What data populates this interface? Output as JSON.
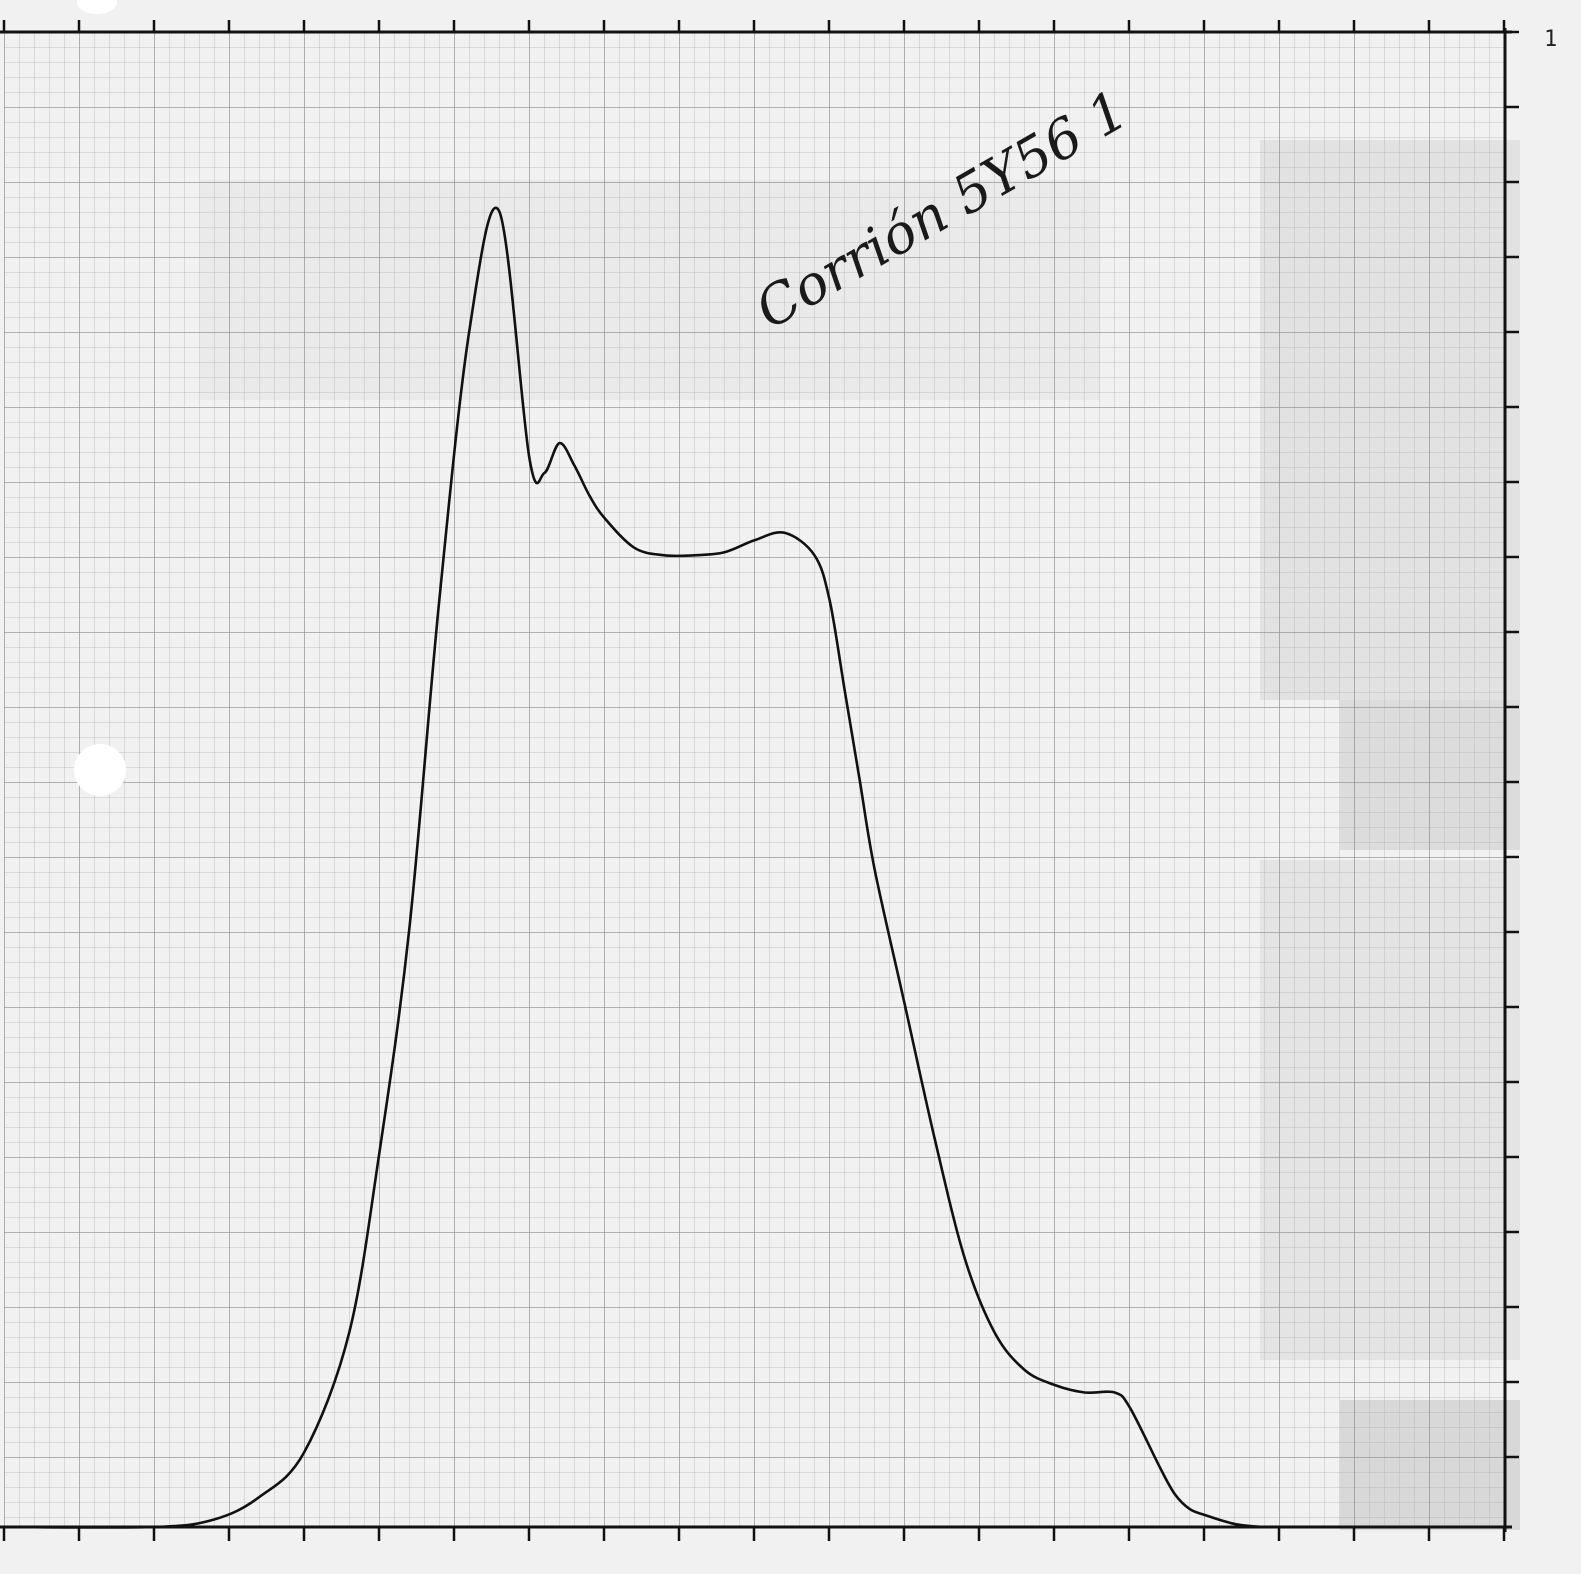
{
  "chart_data": {
    "type": "line",
    "title": "",
    "xlabel": "",
    "ylabel": "",
    "handwritten_note": "Corrión 5Y56 1",
    "right_edge_label": "1",
    "xlim": [
      0,
      100
    ],
    "ylim": [
      0,
      100
    ],
    "grid": true,
    "series": [
      {
        "x": [
          0,
          10,
          14,
          17,
          20,
          23,
          25,
          27,
          29,
          31,
          33,
          35,
          36,
          37,
          38,
          39,
          40,
          42,
          44,
          46,
          48,
          50,
          52,
          54,
          55,
          56,
          57,
          58,
          60,
          62,
          64,
          66,
          68,
          70,
          72,
          74,
          75,
          77,
          78,
          79,
          80,
          82,
          84,
          86,
          88,
          90,
          92,
          95,
          100
        ],
        "y": [
          0,
          0,
          0.5,
          2,
          5,
          13,
          25,
          40,
          62,
          80,
          88,
          71.5,
          70.5,
          72.5,
          71,
          69,
          67.5,
          65.5,
          65,
          65,
          65.2,
          66,
          66.5,
          65,
          62,
          56,
          50,
          44,
          35,
          26,
          18,
          13,
          10.5,
          9.5,
          9,
          9,
          8,
          4,
          2.2,
          1.2,
          0.8,
          0.2,
          0,
          0,
          0,
          0,
          0,
          0,
          0
        ]
      }
    ]
  }
}
